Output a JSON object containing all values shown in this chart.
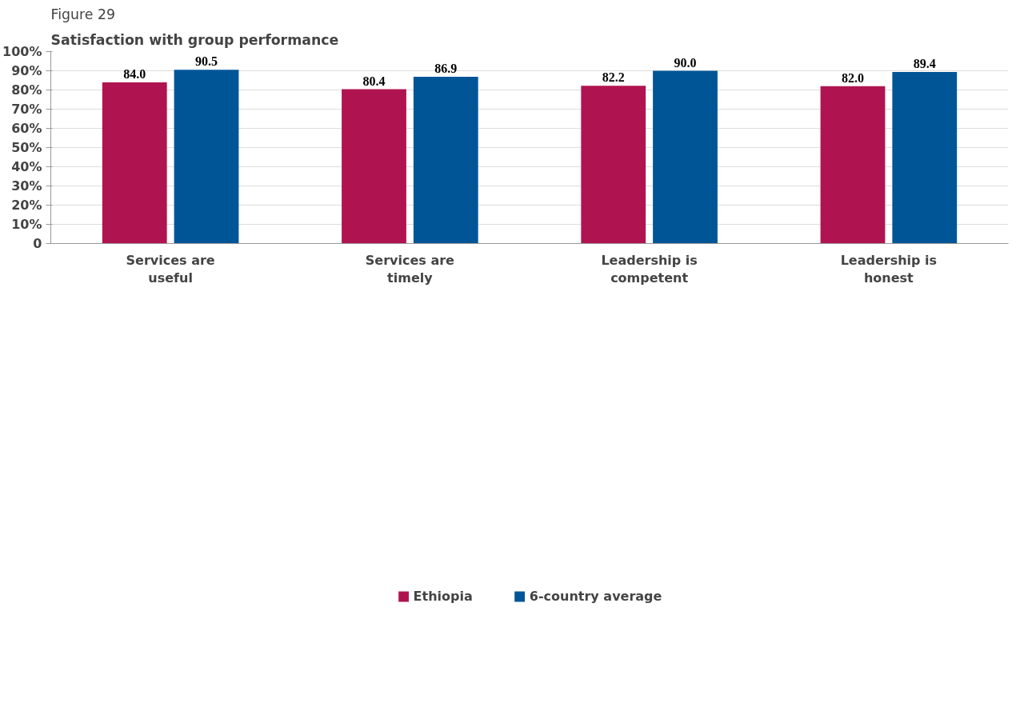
{
  "chart_data": {
    "type": "bar",
    "title": "Figure 29",
    "subtitle": "Satisfaction with group performance",
    "categories": [
      "Services are useful",
      "Services are timely",
      "Leadership is competent",
      "Leadership is honest"
    ],
    "series": [
      {
        "name": "Ethiopia",
        "color": "#b01450",
        "values": [
          84.0,
          80.4,
          82.2,
          82.0
        ],
        "value_labels": [
          "84.0",
          "80.4",
          "82.2",
          "82.0"
        ]
      },
      {
        "name": "6-country average",
        "color": "#005597",
        "values": [
          90.5,
          86.9,
          90.0,
          89.4
        ],
        "value_labels": [
          "90.5",
          "86.9",
          "90.0",
          "89.4"
        ]
      }
    ],
    "ylim": [
      0,
      100
    ],
    "yticks": [
      0,
      {
        "value": 10,
        "label": "10%"
      },
      {
        "value": 20,
        "label": "20%"
      },
      {
        "value": 30,
        "label": "30%"
      },
      {
        "value": 40,
        "label": "40%"
      },
      {
        "value": 50,
        "label": "50%"
      },
      {
        "value": 60,
        "label": "60%"
      },
      {
        "value": 70,
        "label": "70%"
      },
      {
        "value": 80,
        "label": "80%"
      },
      {
        "value": 90,
        "label": "90%"
      },
      {
        "value": 100,
        "label": "100%"
      }
    ],
    "grid": "y",
    "legend": "bottom"
  }
}
